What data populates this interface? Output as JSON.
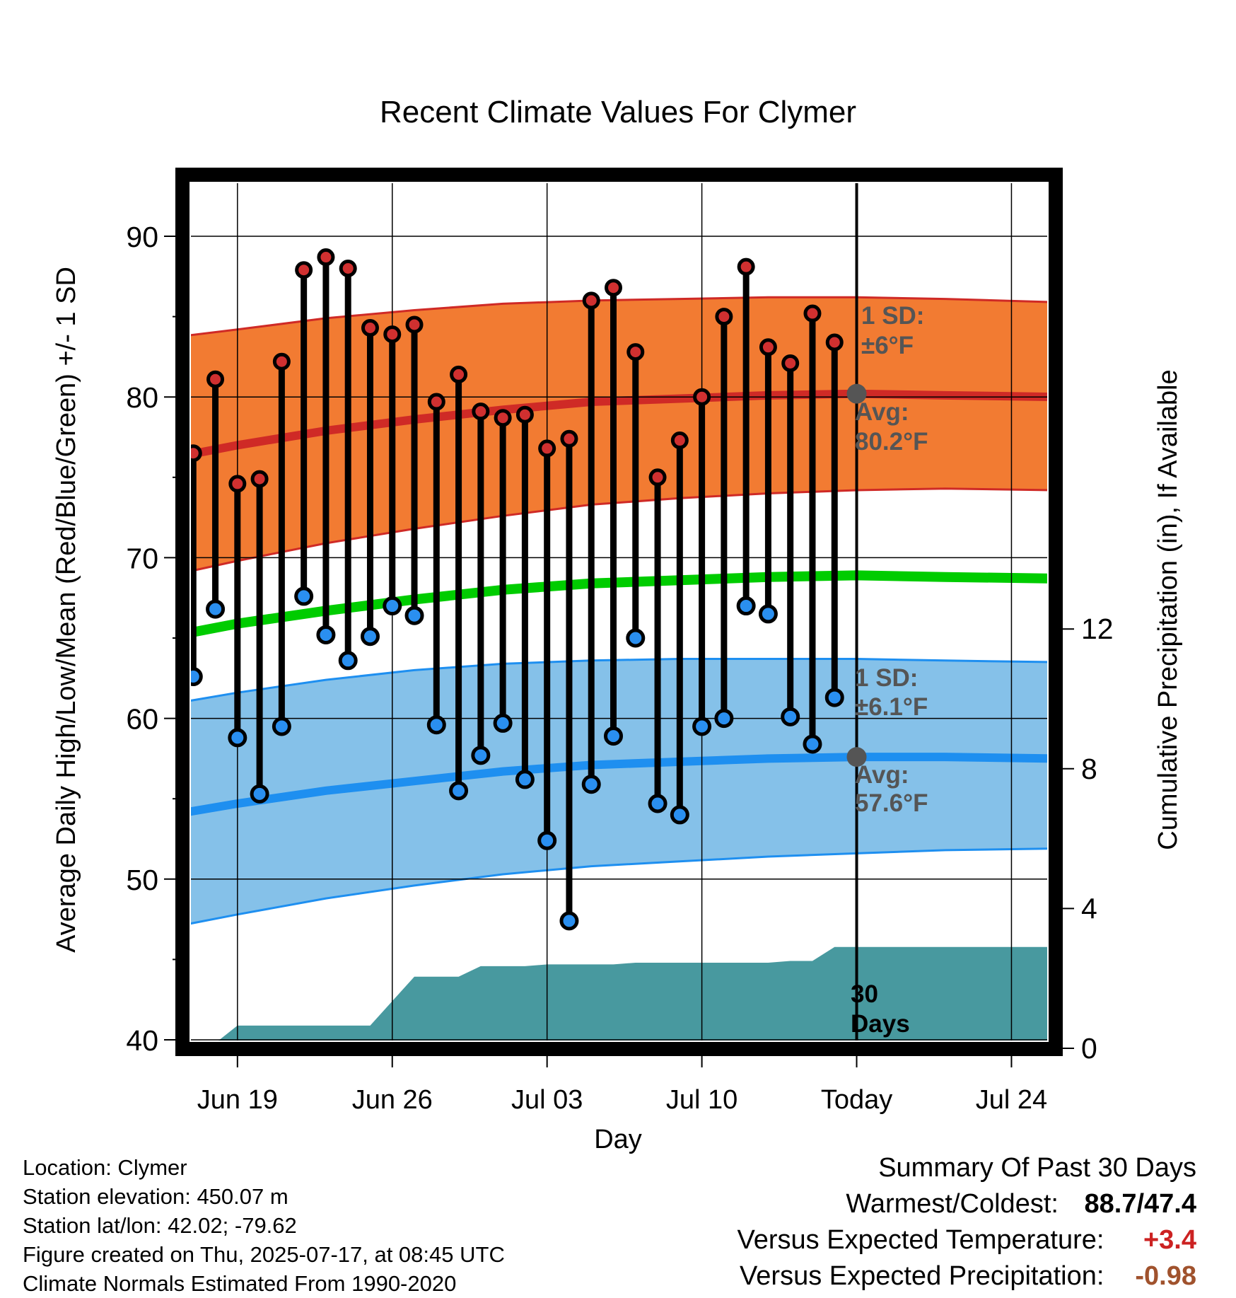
{
  "chart_data": {
    "type": "line",
    "title": "Recent Climate Values For Clymer",
    "xlabel": "Day",
    "ylabel_left": "Average Daily High/Low/Mean (Red/Blue/Green) +/- 1 SD",
    "ylabel_right": "Cumulative Precipitation (in), If Available",
    "ylim_left": [
      40,
      92
    ],
    "ylim_right": [
      0,
      15.4
    ],
    "yticks_left": [
      40,
      50,
      60,
      70,
      80,
      90
    ],
    "yticks_right": [
      0,
      4,
      8,
      12
    ],
    "xlim": [
      "2025-06-16",
      "2025-07-26"
    ],
    "xticks": [
      {
        "date": "2025-06-19",
        "label": "Jun 19"
      },
      {
        "date": "2025-06-26",
        "label": "Jun 26"
      },
      {
        "date": "2025-07-03",
        "label": "Jul 03"
      },
      {
        "date": "2025-07-10",
        "label": "Jul 10"
      },
      {
        "date": "2025-07-17",
        "label": "Today"
      },
      {
        "date": "2025-07-24",
        "label": "Jul 24"
      }
    ],
    "today": "2025-07-17",
    "grid": true,
    "daily": {
      "dates": [
        "2025-06-17",
        "2025-06-18",
        "2025-06-19",
        "2025-06-20",
        "2025-06-21",
        "2025-06-22",
        "2025-06-23",
        "2025-06-24",
        "2025-06-25",
        "2025-06-26",
        "2025-06-27",
        "2025-06-28",
        "2025-06-29",
        "2025-06-30",
        "2025-07-01",
        "2025-07-02",
        "2025-07-03",
        "2025-07-04",
        "2025-07-05",
        "2025-07-06",
        "2025-07-07",
        "2025-07-08",
        "2025-07-09",
        "2025-07-10",
        "2025-07-11",
        "2025-07-12",
        "2025-07-13",
        "2025-07-14",
        "2025-07-15",
        "2025-07-16"
      ],
      "high": [
        76.5,
        81.1,
        74.6,
        74.9,
        82.2,
        87.9,
        88.7,
        88.0,
        84.3,
        83.9,
        84.5,
        79.7,
        81.4,
        79.1,
        78.7,
        78.9,
        76.8,
        77.4,
        86.0,
        86.8,
        82.8,
        75.0,
        77.3,
        80.0,
        85.0,
        88.1,
        83.1,
        82.1,
        85.2,
        83.4
      ],
      "low": [
        62.6,
        66.8,
        58.8,
        55.3,
        59.5,
        67.6,
        65.2,
        63.6,
        65.1,
        67.0,
        66.4,
        59.6,
        55.5,
        57.7,
        59.7,
        56.2,
        52.4,
        47.4,
        55.9,
        58.9,
        65.0,
        54.7,
        54.0,
        59.5,
        60.0,
        67.0,
        66.5,
        60.1,
        58.4,
        61.3
      ]
    },
    "normals": {
      "dates": [
        "2025-06-16",
        "2025-06-19",
        "2025-06-23",
        "2025-06-27",
        "2025-07-01",
        "2025-07-05",
        "2025-07-09",
        "2025-07-13",
        "2025-07-17",
        "2025-07-21",
        "2025-07-26"
      ],
      "avg_high": [
        76.2,
        77.0,
        77.9,
        78.6,
        79.2,
        79.7,
        79.9,
        80.1,
        80.2,
        80.1,
        80.0
      ],
      "avg_low": [
        54.0,
        54.7,
        55.5,
        56.1,
        56.7,
        57.1,
        57.3,
        57.5,
        57.6,
        57.6,
        57.5
      ],
      "avg_mean": [
        65.1,
        65.9,
        66.7,
        67.4,
        68.0,
        68.4,
        68.6,
        68.8,
        68.9,
        68.8,
        68.7
      ],
      "high_sd_upper": [
        83.7,
        84.2,
        84.9,
        85.4,
        85.8,
        86.0,
        86.1,
        86.2,
        86.2,
        86.1,
        85.9
      ],
      "high_sd_lower": [
        68.9,
        69.8,
        70.9,
        71.8,
        72.6,
        73.3,
        73.7,
        74.0,
        74.2,
        74.3,
        74.2
      ],
      "low_sd_upper": [
        60.9,
        61.6,
        62.4,
        63.0,
        63.4,
        63.6,
        63.7,
        63.7,
        63.7,
        63.6,
        63.5
      ],
      "low_sd_lower": [
        47.0,
        47.8,
        48.8,
        49.6,
        50.3,
        50.8,
        51.1,
        51.4,
        51.6,
        51.8,
        51.9
      ]
    },
    "precip_cumulative": {
      "dates": [
        "2025-06-16",
        "2025-06-17",
        "2025-06-18",
        "2025-06-19",
        "2025-06-20",
        "2025-06-21",
        "2025-06-22",
        "2025-06-23",
        "2025-06-24",
        "2025-06-25",
        "2025-06-26",
        "2025-06-27",
        "2025-06-28",
        "2025-06-29",
        "2025-06-30",
        "2025-07-01",
        "2025-07-02",
        "2025-07-03",
        "2025-07-04",
        "2025-07-05",
        "2025-07-06",
        "2025-07-07",
        "2025-07-08",
        "2025-07-09",
        "2025-07-10",
        "2025-07-11",
        "2025-07-12",
        "2025-07-13",
        "2025-07-14",
        "2025-07-15",
        "2025-07-16",
        "2025-07-17",
        "2025-07-26"
      ],
      "values": [
        0.0,
        0.05,
        0.15,
        0.65,
        0.65,
        0.65,
        0.65,
        0.65,
        0.65,
        0.65,
        1.35,
        2.05,
        2.05,
        2.05,
        2.35,
        2.35,
        2.35,
        2.4,
        2.4,
        2.4,
        2.4,
        2.45,
        2.45,
        2.45,
        2.45,
        2.45,
        2.45,
        2.45,
        2.5,
        2.5,
        2.9,
        2.9,
        2.9
      ]
    },
    "colors": {
      "high_band": "#f27b32",
      "high_line": "#cf2a26",
      "mean_line": "#00cc00",
      "low_band": "#85c1e9",
      "low_line": "#1e8ff0",
      "high_marker": "#d03030",
      "low_marker": "#2a8ff0",
      "precip_fill": "#48999f",
      "annotation_text": "#555555"
    },
    "annotations": {
      "high_sd_line1": "1 SD:",
      "high_sd_line2": "±6°F",
      "high_avg_line1": "Avg:",
      "high_avg_line2": "80.2°F",
      "low_sd_line1": "1 SD:",
      "low_sd_line2": "±6.1°F",
      "low_avg_line1": "Avg:",
      "low_avg_line2": "57.6°F",
      "days_line1": "30",
      "days_line2": "Days"
    }
  },
  "info": {
    "location": "Location: Clymer",
    "elevation": "Station elevation: 450.07 m",
    "latlon": "Station lat/lon: 42.02; -79.62",
    "created": "Figure created on Thu, 2025-07-17, at 08:45 UTC",
    "normals": "Climate Normals Estimated From 1990-2020"
  },
  "summary": {
    "title": "Summary Of Past 30 Days",
    "warm_cold_label": "Warmest/Coldest:",
    "warm_cold_value": "88.7/47.4",
    "temp_label": "Versus Expected Temperature:",
    "temp_value": "+3.4",
    "precip_label": "Versus Expected Precipitation:",
    "precip_value": "-0.98"
  }
}
